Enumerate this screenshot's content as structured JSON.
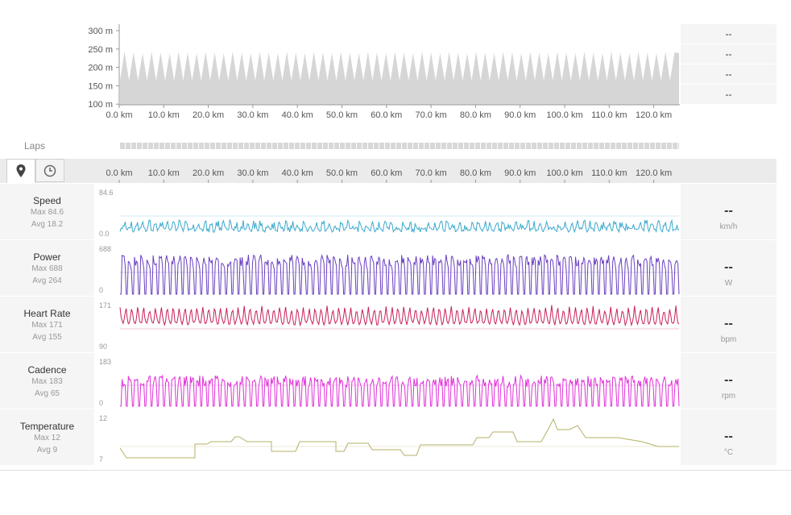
{
  "elevation": {
    "y_ticks": [
      "300 m",
      "250 m",
      "200 m",
      "150 m",
      "100 m"
    ],
    "boxes": [
      "--",
      "--",
      "--",
      "--"
    ]
  },
  "distance_ticks": [
    "0.0 km",
    "10.0 km",
    "20.0 km",
    "30.0 km",
    "40.0 km",
    "50.0 km",
    "60.0 km",
    "70.0 km",
    "80.0 km",
    "90.0 km",
    "100.0 km",
    "110.0 km",
    "120.0 km"
  ],
  "laps": {
    "label": "Laps"
  },
  "toolbar": {
    "map_icon": "location-pin-icon",
    "time_icon": "clock-icon"
  },
  "colors": {
    "speed": "#3aa8cc",
    "power": "#6a3fc0",
    "heart_rate": "#c8205a",
    "cadence": "#e030d8",
    "temperature": "#b5b065"
  },
  "metrics": [
    {
      "name": "Speed",
      "max": "Max 84.6",
      "avg": "Avg 18.2",
      "ymax": "84.6",
      "ymin": "0.0",
      "value": "--",
      "unit": "km/h"
    },
    {
      "name": "Power",
      "max": "Max 688",
      "avg": "Avg 264",
      "ymax": "688",
      "ymin": "0",
      "value": "--",
      "unit": "W"
    },
    {
      "name": "Heart Rate",
      "max": "Max 171",
      "avg": "Avg 155",
      "ymax": "171",
      "ymin": "90",
      "value": "--",
      "unit": "bpm"
    },
    {
      "name": "Cadence",
      "max": "Max 183",
      "avg": "Avg 65",
      "ymax": "183",
      "ymin": "0",
      "value": "--",
      "unit": "rpm"
    },
    {
      "name": "Temperature",
      "max": "Max 12",
      "avg": "Avg 9",
      "ymax": "12",
      "ymin": "7",
      "value": "--",
      "unit": "°C"
    }
  ]
}
